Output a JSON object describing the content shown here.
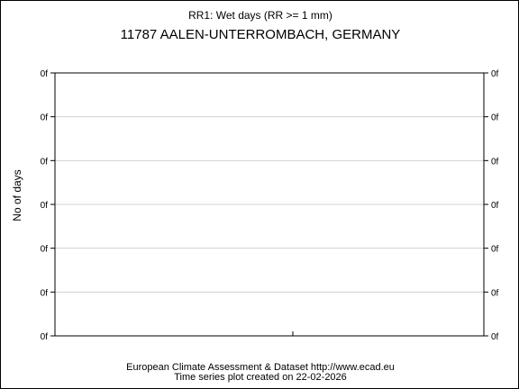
{
  "chart_data": {
    "type": "line",
    "title": "RR1: Wet days (RR >= 1 mm)",
    "subtitle": "11787 AALEN-UNTERROMBACH, GERMANY",
    "xlabel": "",
    "ylabel": "No of days",
    "y_tick_labels": [
      "0f",
      "0f",
      "0f",
      "0f",
      "0f",
      "0f",
      "0f"
    ],
    "x_tick_labels": [],
    "series": [],
    "grid": true,
    "legend": "none"
  },
  "footer": {
    "line1": "European Climate Assessment & Dataset  http://www.ecad.eu",
    "line2": "Time series plot created on 22-02-2026"
  },
  "colors": {
    "grid": "#d0d0d0",
    "axis": "#000000"
  }
}
